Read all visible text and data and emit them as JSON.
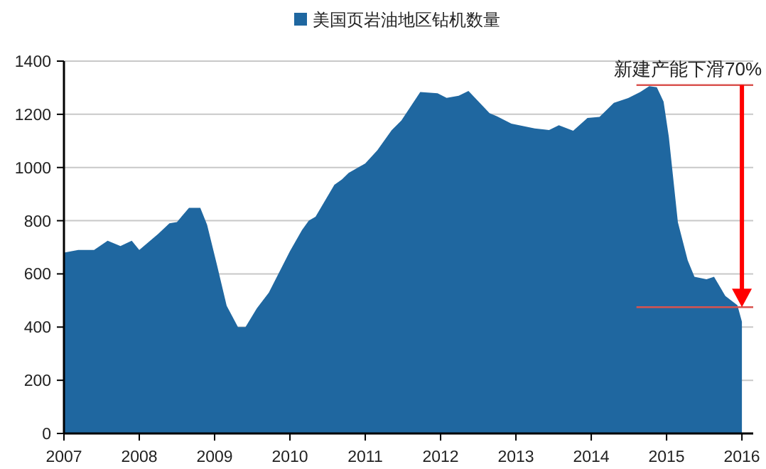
{
  "chart_data": {
    "type": "area",
    "x": [
      2007.0,
      2007.19,
      2007.4,
      2007.58,
      2007.75,
      2007.9,
      2008.0,
      2008.25,
      2008.4,
      2008.5,
      2008.66,
      2008.81,
      2008.9,
      2009.03,
      2009.16,
      2009.31,
      2009.41,
      2009.56,
      2009.72,
      2010.0,
      2010.16,
      2010.25,
      2010.34,
      2010.59,
      2010.69,
      2010.78,
      2011.0,
      2011.16,
      2011.35,
      2011.48,
      2011.73,
      2011.96,
      2012.08,
      2012.24,
      2012.37,
      2012.65,
      2012.75,
      2012.94,
      2013.25,
      2013.44,
      2013.57,
      2013.76,
      2013.95,
      2014.11,
      2014.3,
      2014.49,
      2014.65,
      2014.77,
      2014.87,
      2014.96,
      2015.03,
      2015.15,
      2015.28,
      2015.37,
      2015.53,
      2015.63,
      2015.78,
      2015.94,
      2016.0
    ],
    "series": [
      {
        "name": "美国页岩油地区钻机数量",
        "color": "#1f67a0",
        "values": [
          680,
          690,
          690,
          725,
          705,
          725,
          690,
          750,
          790,
          795,
          848,
          848,
          785,
          635,
          480,
          400,
          400,
          470,
          530,
          685,
          765,
          800,
          815,
          935,
          955,
          980,
          1015,
          1065,
          1140,
          1177,
          1284,
          1279,
          1262,
          1270,
          1288,
          1204,
          1192,
          1165,
          1147,
          1141,
          1159,
          1138,
          1186,
          1190,
          1243,
          1261,
          1284,
          1306,
          1302,
          1248,
          1115,
          794,
          651,
          589,
          580,
          589,
          517,
          482,
          420
        ]
      }
    ],
    "xlim": [
      2007,
      2016.15
    ],
    "xticks": [
      2007,
      2008,
      2009,
      2010,
      2011,
      2012,
      2013,
      2014,
      2015,
      2016
    ],
    "ylim": [
      0,
      1400
    ],
    "yticks": [
      0,
      200,
      400,
      600,
      800,
      1000,
      1200,
      1400
    ],
    "grid": "y",
    "legend": "top",
    "ref_lines": [
      {
        "axis": "y",
        "value": 1310,
        "label": null,
        "color": "#d9534f"
      },
      {
        "axis": "y",
        "value": 475,
        "label": null,
        "color": "#d9534f"
      }
    ],
    "annotations": [
      {
        "text": "新建产能下滑70%",
        "x": 2016,
        "y": 1310
      }
    ]
  }
}
